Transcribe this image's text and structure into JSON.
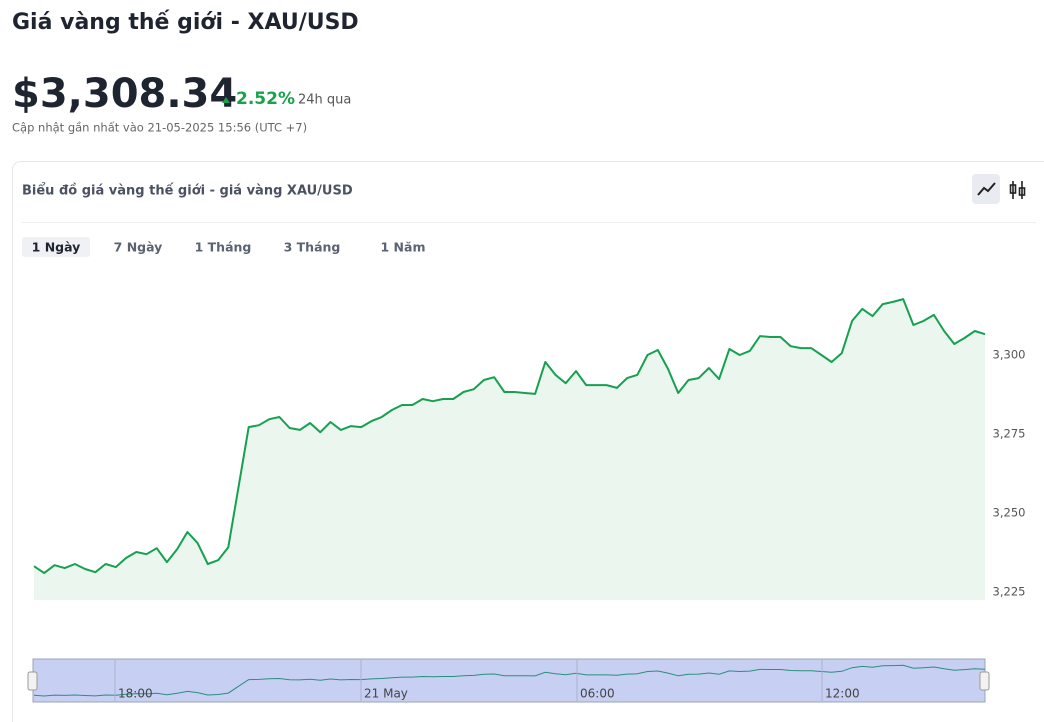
{
  "header": {
    "title": "Giá vàng thế giới - XAU/USD",
    "price": "$3,308.34",
    "change": "2.52%",
    "change_period": "24h qua",
    "updated": "Cập nhật gần nhất vào 21-05-2025 15:56 (UTC +7)"
  },
  "card": {
    "title": "Biểu đồ giá vàng thế giới - giá vàng XAU/USD",
    "tabs": [
      "1 Ngày",
      "7 Ngày",
      "1 Tháng",
      "3 Tháng",
      "1 Năm"
    ],
    "active_tab": 0
  },
  "navigator": {
    "labels": [
      "18:00",
      "21 May",
      "06:00",
      "12:00"
    ]
  },
  "chart_data": {
    "type": "area",
    "color": "#16a050",
    "fill": "#eaf6ee",
    "values": [
      3233.2,
      3231.0,
      3233.5,
      3232.6,
      3233.9,
      3232.3,
      3231.3,
      3233.9,
      3232.9,
      3235.8,
      3237.7,
      3237.0,
      3238.9,
      3234.5,
      3238.6,
      3244.0,
      3240.5,
      3233.9,
      3235.1,
      3239.2,
      3258.2,
      3277.2,
      3277.8,
      3279.7,
      3280.4,
      3276.9,
      3276.3,
      3278.5,
      3275.6,
      3278.8,
      3276.3,
      3277.5,
      3277.2,
      3279.1,
      3280.4,
      3282.6,
      3284.2,
      3284.2,
      3286.1,
      3285.4,
      3286.1,
      3286.1,
      3288.3,
      3289.2,
      3292.1,
      3293.0,
      3288.3,
      3288.3,
      3288.0,
      3287.7,
      3297.8,
      3293.7,
      3291.1,
      3294.9,
      3290.5,
      3290.5,
      3290.5,
      3289.6,
      3292.7,
      3293.7,
      3300.0,
      3301.6,
      3295.6,
      3288.0,
      3292.1,
      3292.7,
      3295.9,
      3292.4,
      3301.9,
      3300.0,
      3301.3,
      3306.0,
      3305.7,
      3305.7,
      3302.8,
      3302.2,
      3302.2,
      3300.0,
      3297.8,
      3300.6,
      3310.8,
      3314.6,
      3312.3,
      3316.1,
      3316.8,
      3317.7,
      3309.5,
      3310.8,
      3312.7,
      3307.6,
      3303.5,
      3305.4,
      3307.6,
      3306.6
    ],
    "ylim": [
      3222.5,
      3326.9
    ],
    "yticks": [
      {
        "value": 3225,
        "label": "3,225"
      },
      {
        "value": 3250,
        "label": "3,250"
      },
      {
        "value": 3275,
        "label": "3,275"
      },
      {
        "value": 3300,
        "label": "3,300"
      }
    ]
  }
}
